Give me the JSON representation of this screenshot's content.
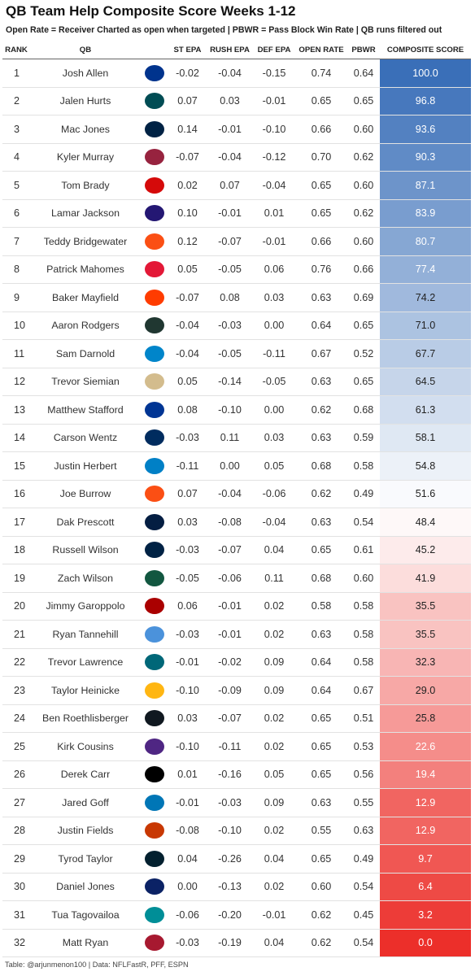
{
  "title": "QB Team Help Composite Score Weeks 1-12",
  "subtitle": "Open Rate = Receiver Charted as open when targeted | PBWR = Pass Block Win Rate | QB runs filtered out",
  "footer": "Table: @arjunmenon100 | Data: NFLFastR, PFF, ESPN",
  "chart_data": {
    "type": "table",
    "columns": [
      "RANK",
      "QB",
      "",
      "ST EPA",
      "RUSH EPA",
      "DEF EPA",
      "OPEN RATE",
      "PBWR",
      "COMPOSITE SCORE"
    ],
    "color_scale": {
      "high": "#3a6fb8",
      "mid": "#ffffff",
      "low": "#ec2f2a",
      "domain": [
        0,
        50,
        100
      ]
    },
    "rows": [
      {
        "rank": "1",
        "qb": "Josh Allen",
        "logo": "bills-logo-icon",
        "logo_color": "#00338D",
        "st_epa": "-0.02",
        "rush_epa": "-0.04",
        "def_epa": "-0.15",
        "open_rate": "0.74",
        "pbwr": "0.64",
        "score": "100.0",
        "score_value": 100.0
      },
      {
        "rank": "2",
        "qb": "Jalen Hurts",
        "logo": "eagles-logo-icon",
        "logo_color": "#004C54",
        "st_epa": "0.07",
        "rush_epa": "0.03",
        "def_epa": "-0.01",
        "open_rate": "0.65",
        "pbwr": "0.65",
        "score": "96.8",
        "score_value": 96.8
      },
      {
        "rank": "3",
        "qb": "Mac Jones",
        "logo": "patriots-logo-icon",
        "logo_color": "#002244",
        "st_epa": "0.14",
        "rush_epa": "-0.01",
        "def_epa": "-0.10",
        "open_rate": "0.66",
        "pbwr": "0.60",
        "score": "93.6",
        "score_value": 93.6
      },
      {
        "rank": "4",
        "qb": "Kyler Murray",
        "logo": "cardinals-logo-icon",
        "logo_color": "#97233F",
        "st_epa": "-0.07",
        "rush_epa": "-0.04",
        "def_epa": "-0.12",
        "open_rate": "0.70",
        "pbwr": "0.62",
        "score": "90.3",
        "score_value": 90.3
      },
      {
        "rank": "5",
        "qb": "Tom Brady",
        "logo": "buccaneers-logo-icon",
        "logo_color": "#D50A0A",
        "st_epa": "0.02",
        "rush_epa": "0.07",
        "def_epa": "-0.04",
        "open_rate": "0.65",
        "pbwr": "0.60",
        "score": "87.1",
        "score_value": 87.1
      },
      {
        "rank": "6",
        "qb": "Lamar Jackson",
        "logo": "ravens-logo-icon",
        "logo_color": "#241773",
        "st_epa": "0.10",
        "rush_epa": "-0.01",
        "def_epa": "0.01",
        "open_rate": "0.65",
        "pbwr": "0.62",
        "score": "83.9",
        "score_value": 83.9
      },
      {
        "rank": "7",
        "qb": "Teddy Bridgewater",
        "logo": "broncos-logo-icon",
        "logo_color": "#FB4F14",
        "st_epa": "0.12",
        "rush_epa": "-0.07",
        "def_epa": "-0.01",
        "open_rate": "0.66",
        "pbwr": "0.60",
        "score": "80.7",
        "score_value": 80.7
      },
      {
        "rank": "8",
        "qb": "Patrick Mahomes",
        "logo": "chiefs-logo-icon",
        "logo_color": "#E31837",
        "st_epa": "0.05",
        "rush_epa": "-0.05",
        "def_epa": "0.06",
        "open_rate": "0.76",
        "pbwr": "0.66",
        "score": "77.4",
        "score_value": 77.4
      },
      {
        "rank": "9",
        "qb": "Baker Mayfield",
        "logo": "browns-logo-icon",
        "logo_color": "#FF3C00",
        "st_epa": "-0.07",
        "rush_epa": "0.08",
        "def_epa": "0.03",
        "open_rate": "0.63",
        "pbwr": "0.69",
        "score": "74.2",
        "score_value": 74.2
      },
      {
        "rank": "10",
        "qb": "Aaron Rodgers",
        "logo": "packers-logo-icon",
        "logo_color": "#203731",
        "st_epa": "-0.04",
        "rush_epa": "-0.03",
        "def_epa": "0.00",
        "open_rate": "0.64",
        "pbwr": "0.65",
        "score": "71.0",
        "score_value": 71.0
      },
      {
        "rank": "11",
        "qb": "Sam Darnold",
        "logo": "panthers-logo-icon",
        "logo_color": "#0085CA",
        "st_epa": "-0.04",
        "rush_epa": "-0.05",
        "def_epa": "-0.11",
        "open_rate": "0.67",
        "pbwr": "0.52",
        "score": "67.7",
        "score_value": 67.7
      },
      {
        "rank": "12",
        "qb": "Trevor Siemian",
        "logo": "saints-logo-icon",
        "logo_color": "#D3BC8D",
        "st_epa": "0.05",
        "rush_epa": "-0.14",
        "def_epa": "-0.05",
        "open_rate": "0.63",
        "pbwr": "0.65",
        "score": "64.5",
        "score_value": 64.5
      },
      {
        "rank": "13",
        "qb": "Matthew Stafford",
        "logo": "rams-logo-icon",
        "logo_color": "#003594",
        "st_epa": "0.08",
        "rush_epa": "-0.10",
        "def_epa": "0.00",
        "open_rate": "0.62",
        "pbwr": "0.68",
        "score": "61.3",
        "score_value": 61.3
      },
      {
        "rank": "14",
        "qb": "Carson Wentz",
        "logo": "colts-logo-icon",
        "logo_color": "#002C5F",
        "st_epa": "-0.03",
        "rush_epa": "0.11",
        "def_epa": "0.03",
        "open_rate": "0.63",
        "pbwr": "0.59",
        "score": "58.1",
        "score_value": 58.1
      },
      {
        "rank": "15",
        "qb": "Justin Herbert",
        "logo": "chargers-logo-icon",
        "logo_color": "#0080C6",
        "st_epa": "-0.11",
        "rush_epa": "0.00",
        "def_epa": "0.05",
        "open_rate": "0.68",
        "pbwr": "0.58",
        "score": "54.8",
        "score_value": 54.8
      },
      {
        "rank": "16",
        "qb": "Joe Burrow",
        "logo": "bengals-logo-icon",
        "logo_color": "#FB4F14",
        "st_epa": "0.07",
        "rush_epa": "-0.04",
        "def_epa": "-0.06",
        "open_rate": "0.62",
        "pbwr": "0.49",
        "score": "51.6",
        "score_value": 51.6
      },
      {
        "rank": "17",
        "qb": "Dak Prescott",
        "logo": "cowboys-logo-icon",
        "logo_color": "#041E42",
        "st_epa": "0.03",
        "rush_epa": "-0.08",
        "def_epa": "-0.04",
        "open_rate": "0.63",
        "pbwr": "0.54",
        "score": "48.4",
        "score_value": 48.4
      },
      {
        "rank": "18",
        "qb": "Russell Wilson",
        "logo": "seahawks-logo-icon",
        "logo_color": "#002244",
        "st_epa": "-0.03",
        "rush_epa": "-0.07",
        "def_epa": "0.04",
        "open_rate": "0.65",
        "pbwr": "0.61",
        "score": "45.2",
        "score_value": 45.2
      },
      {
        "rank": "19",
        "qb": "Zach Wilson",
        "logo": "jets-logo-icon",
        "logo_color": "#125740",
        "st_epa": "-0.05",
        "rush_epa": "-0.06",
        "def_epa": "0.11",
        "open_rate": "0.68",
        "pbwr": "0.60",
        "score": "41.9",
        "score_value": 41.9
      },
      {
        "rank": "20",
        "qb": "Jimmy Garoppolo",
        "logo": "49ers-logo-icon",
        "logo_color": "#AA0000",
        "st_epa": "0.06",
        "rush_epa": "-0.01",
        "def_epa": "0.02",
        "open_rate": "0.58",
        "pbwr": "0.58",
        "score": "35.5",
        "score_value": 35.5
      },
      {
        "rank": "21",
        "qb": "Ryan Tannehill",
        "logo": "titans-logo-icon",
        "logo_color": "#4B92DB",
        "st_epa": "-0.03",
        "rush_epa": "-0.01",
        "def_epa": "0.02",
        "open_rate": "0.63",
        "pbwr": "0.58",
        "score": "35.5",
        "score_value": 35.5
      },
      {
        "rank": "22",
        "qb": "Trevor Lawrence",
        "logo": "jaguars-logo-icon",
        "logo_color": "#006778",
        "st_epa": "-0.01",
        "rush_epa": "-0.02",
        "def_epa": "0.09",
        "open_rate": "0.64",
        "pbwr": "0.58",
        "score": "32.3",
        "score_value": 32.3
      },
      {
        "rank": "23",
        "qb": "Taylor Heinicke",
        "logo": "washington-logo-icon",
        "logo_color": "#FFB612",
        "st_epa": "-0.10",
        "rush_epa": "-0.09",
        "def_epa": "0.09",
        "open_rate": "0.64",
        "pbwr": "0.67",
        "score": "29.0",
        "score_value": 29.0
      },
      {
        "rank": "24",
        "qb": "Ben Roethlisberger",
        "logo": "steelers-logo-icon",
        "logo_color": "#101820",
        "st_epa": "0.03",
        "rush_epa": "-0.07",
        "def_epa": "0.02",
        "open_rate": "0.65",
        "pbwr": "0.51",
        "score": "25.8",
        "score_value": 25.8
      },
      {
        "rank": "25",
        "qb": "Kirk Cousins",
        "logo": "vikings-logo-icon",
        "logo_color": "#4F2683",
        "st_epa": "-0.10",
        "rush_epa": "-0.11",
        "def_epa": "0.02",
        "open_rate": "0.65",
        "pbwr": "0.53",
        "score": "22.6",
        "score_value": 22.6
      },
      {
        "rank": "26",
        "qb": "Derek Carr",
        "logo": "raiders-logo-icon",
        "logo_color": "#000000",
        "st_epa": "0.01",
        "rush_epa": "-0.16",
        "def_epa": "0.05",
        "open_rate": "0.65",
        "pbwr": "0.56",
        "score": "19.4",
        "score_value": 19.4
      },
      {
        "rank": "27",
        "qb": "Jared Goff",
        "logo": "lions-logo-icon",
        "logo_color": "#0076B6",
        "st_epa": "-0.01",
        "rush_epa": "-0.03",
        "def_epa": "0.09",
        "open_rate": "0.63",
        "pbwr": "0.55",
        "score": "12.9",
        "score_value": 12.9
      },
      {
        "rank": "28",
        "qb": "Justin Fields",
        "logo": "bears-logo-icon",
        "logo_color": "#C83803",
        "st_epa": "-0.08",
        "rush_epa": "-0.10",
        "def_epa": "0.02",
        "open_rate": "0.55",
        "pbwr": "0.63",
        "score": "12.9",
        "score_value": 12.9
      },
      {
        "rank": "29",
        "qb": "Tyrod Taylor",
        "logo": "texans-logo-icon",
        "logo_color": "#03202F",
        "st_epa": "0.04",
        "rush_epa": "-0.26",
        "def_epa": "0.04",
        "open_rate": "0.65",
        "pbwr": "0.49",
        "score": "9.7",
        "score_value": 9.7
      },
      {
        "rank": "30",
        "qb": "Daniel Jones",
        "logo": "giants-logo-icon",
        "logo_color": "#0B2265",
        "st_epa": "0.00",
        "rush_epa": "-0.13",
        "def_epa": "0.02",
        "open_rate": "0.60",
        "pbwr": "0.54",
        "score": "6.4",
        "score_value": 6.4
      },
      {
        "rank": "31",
        "qb": "Tua Tagovailoa",
        "logo": "dolphins-logo-icon",
        "logo_color": "#008E97",
        "st_epa": "-0.06",
        "rush_epa": "-0.20",
        "def_epa": "-0.01",
        "open_rate": "0.62",
        "pbwr": "0.45",
        "score": "3.2",
        "score_value": 3.2
      },
      {
        "rank": "32",
        "qb": "Matt Ryan",
        "logo": "falcons-logo-icon",
        "logo_color": "#A71930",
        "st_epa": "-0.03",
        "rush_epa": "-0.19",
        "def_epa": "0.04",
        "open_rate": "0.62",
        "pbwr": "0.54",
        "score": "0.0",
        "score_value": 0.0
      }
    ]
  }
}
